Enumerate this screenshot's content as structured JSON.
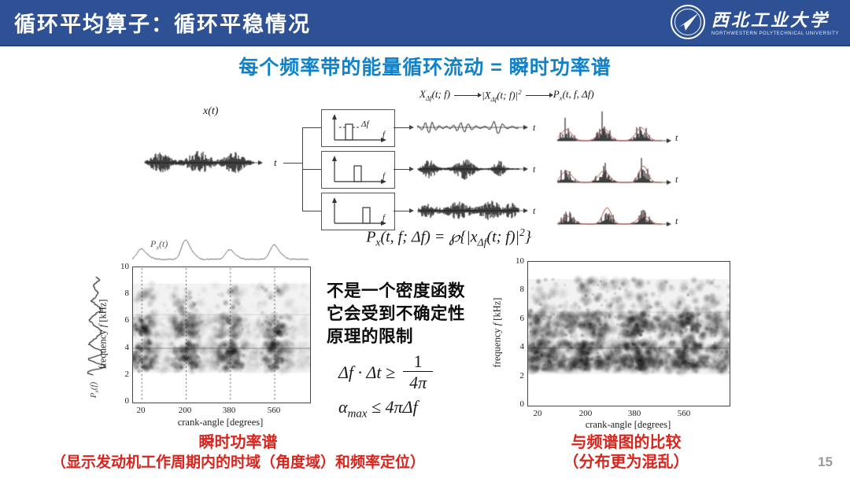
{
  "header": {
    "title": "循环平均算子：循环平稳情况",
    "logo": {
      "cn": "西北工业大学",
      "en": "NORTHWESTERN POLYTECHNICAL UNIVERSITY"
    }
  },
  "subtitle": "每个频率带的能量循环流动 = 瞬时功率谱",
  "pipeline": {
    "x1": {
      "base": "X",
      "sub": "Δf",
      "tail": "(t; f)"
    },
    "x2": {
      "pre": "|X",
      "sub": "Δf",
      "tail": "(t; f)|",
      "sup": "2"
    },
    "x3": {
      "base": "P",
      "sub": "x",
      "tail": "(t, f, Δf)"
    }
  },
  "diagram": {
    "signal_label": {
      "base": "x",
      "tail": "(t)"
    },
    "t_label": "t",
    "f_label": "f",
    "df_label": "Δf"
  },
  "main_formula": {
    "base": "P",
    "sub": "x",
    "mid": "(t, f; Δf) = ℘{|x",
    "sub2": "Δf",
    "tail": "(t; f)|",
    "sup": "2",
    "close": "}"
  },
  "note_lines": [
    "不是一个密度函数",
    "它会受到不确定性",
    "原理的限制"
  ],
  "uncertainty": {
    "lhs": "Δf · Δt ≥",
    "num": "1",
    "den": "4π"
  },
  "alpha_formula": {
    "base": "α",
    "sub": "max",
    "rest": " ≤ 4πΔf"
  },
  "captions": {
    "left": [
      "瞬时功率谱",
      "（显示发动机工作周期内的时域（角度域）和频率定位）"
    ],
    "right": [
      "与频谱图的比较",
      "（分布更为混乱）"
    ]
  },
  "page_number": "15",
  "colors": {
    "header_bg": "#2d5194",
    "subtitle_blue": "#1282c8",
    "caption_red": "#d9251d",
    "envelope_red": "#b0544c",
    "page_gray": "#9a9a9a"
  },
  "chart_data": [
    {
      "type": "heatmap",
      "name": "instantaneous power spectrum",
      "xlabel": "crank-angle [degrees]",
      "ylabel_pre": "frequency ",
      "ylabel_var": "f",
      "ylabel_post": " [kHz]",
      "xticks": [
        20,
        200,
        380,
        560
      ],
      "xtick_labels": [
        "20",
        "200",
        "380",
        "560"
      ],
      "yticks": [
        0,
        2,
        4,
        6,
        8,
        10
      ],
      "ytick_labels": [
        "10",
        "8",
        "6",
        "4",
        "2",
        "0"
      ],
      "ylim": [
        0,
        10
      ],
      "active_band_khz": [
        2.2,
        8.8
      ],
      "dark_bands_khz": [
        [
          2.6,
          3.3
        ],
        [
          3.8,
          4.2
        ],
        [
          5.2,
          6.0
        ]
      ],
      "energy_burst_angles_deg": [
        20,
        200,
        380,
        560
      ],
      "gridlines": "dashed vertical lines at xticks",
      "marginal_top": {
        "label": {
          "base": "P",
          "sub": "x",
          "tail": "(t)"
        },
        "peaks_at_deg": [
          20,
          200,
          380,
          560
        ],
        "relative_heights": [
          0.55,
          1.0,
          0.5,
          0.75
        ]
      },
      "marginal_left": {
        "label": {
          "base": "P",
          "sub": "x",
          "tail": "(f)"
        }
      }
    },
    {
      "type": "heatmap",
      "name": "spectrogram (comparison)",
      "xlabel": "crank-angle [degrees]",
      "ylabel_pre": "frequency ",
      "ylabel_var": "f",
      "ylabel_post": " [kHz]",
      "xticks": [
        20,
        200,
        380,
        560
      ],
      "xtick_labels": [
        "20",
        "200",
        "380",
        "560"
      ],
      "yticks": [
        0,
        2,
        4,
        6,
        8,
        10
      ],
      "ytick_labels": [
        "10",
        "8",
        "6",
        "4",
        "2",
        "0"
      ],
      "ylim": [
        0,
        10
      ],
      "active_band_khz": [
        2.2,
        9.0
      ],
      "dark_bands_khz": [
        [
          2.6,
          3.3
        ],
        [
          3.8,
          4.2
        ],
        [
          5.2,
          6.0
        ]
      ],
      "gridlines": "none",
      "distribution": "scattered, chaotic"
    }
  ]
}
